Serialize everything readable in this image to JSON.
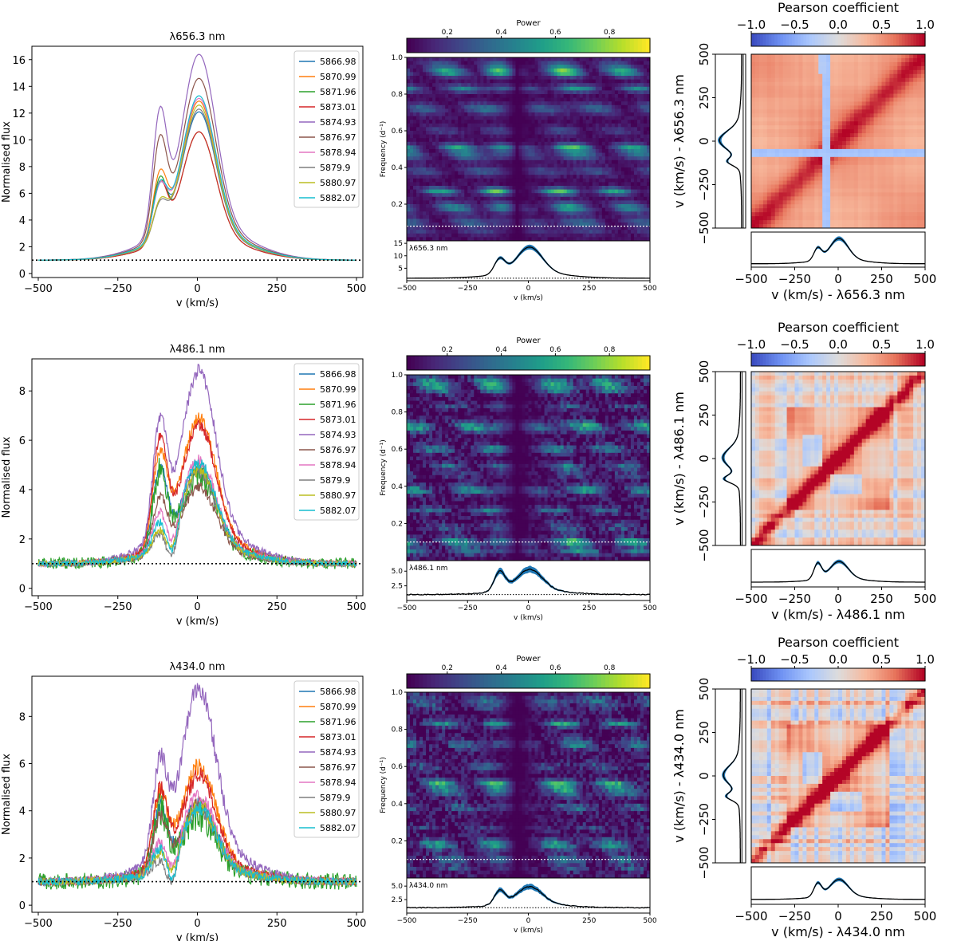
{
  "colors": {
    "series": [
      "#1f77b4",
      "#ff7f0e",
      "#2ca02c",
      "#d62728",
      "#9467bd",
      "#8c564b",
      "#e377c2",
      "#7f7f7f",
      "#bcbd22",
      "#17becf"
    ],
    "profile_fill": "#1f77b4",
    "profile_line": "#000000",
    "viridis": [
      "#440154",
      "#482878",
      "#3e4989",
      "#31688e",
      "#26828e",
      "#1f9e89",
      "#35b779",
      "#6ece58",
      "#b5de2b",
      "#fde725"
    ],
    "coolwarm": [
      "#3b4cc0",
      "#6f92f3",
      "#aac7fd",
      "#dddcdc",
      "#f7b89c",
      "#e7745b",
      "#b40426"
    ]
  },
  "chart_data": [
    {
      "type": "line",
      "panel": "flux-halpha",
      "title": "λ656.3 nm",
      "xlabel": "v (km/s)",
      "ylabel": "Normalised flux",
      "xlim": [
        -520,
        520
      ],
      "ylim": [
        -0.3,
        17
      ],
      "xticks": [
        -500,
        -250,
        0,
        250,
        500
      ],
      "yticks": [
        0,
        2,
        4,
        6,
        8,
        10,
        12,
        14,
        16
      ],
      "continuum": 1,
      "noise": 0,
      "legend_position": "upper right",
      "series": [
        {
          "name": "5866.98",
          "peak": 12.1,
          "shoulder": 3.9
        },
        {
          "name": "5870.99",
          "peak": 12.9,
          "shoulder": 4.7
        },
        {
          "name": "5871.96",
          "peak": 10.6,
          "shoulder": 4.6
        },
        {
          "name": "5873.01",
          "peak": 10.6,
          "shoulder": 4.3
        },
        {
          "name": "5874.93",
          "peak": 16.4,
          "shoulder": 8.8
        },
        {
          "name": "5876.97",
          "peak": 14.6,
          "shoulder": 7.0
        },
        {
          "name": "5878.94",
          "peak": 13.1,
          "shoulder": 3.7
        },
        {
          "name": "5879.9",
          "peak": 12.3,
          "shoulder": 2.5
        },
        {
          "name": "5880.97",
          "peak": 12.6,
          "shoulder": 2.6
        },
        {
          "name": "5882.07",
          "peak": 13.3,
          "shoulder": 3.8
        }
      ]
    },
    {
      "type": "line",
      "panel": "flux-hbeta",
      "title": "λ486.1 nm",
      "xlabel": "v (km/s)",
      "ylabel": "Normalised flux",
      "xlim": [
        -520,
        520
      ],
      "ylim": [
        -0.3,
        9.3
      ],
      "xticks": [
        -500,
        -250,
        0,
        250,
        500
      ],
      "yticks": [
        0,
        2,
        4,
        6,
        8
      ],
      "continuum": 1,
      "noise": 0.3,
      "legend_position": "upper right",
      "series": [
        {
          "name": "5866.98",
          "peak": 4.9,
          "shoulder": 3.3
        },
        {
          "name": "5870.99",
          "peak": 6.9,
          "shoulder": 3.6
        },
        {
          "name": "5871.96",
          "peak": 4.6,
          "shoulder": 3.2
        },
        {
          "name": "5873.01",
          "peak": 6.6,
          "shoulder": 4.2
        },
        {
          "name": "5874.93",
          "peak": 8.8,
          "shoulder": 4.6
        },
        {
          "name": "5876.97",
          "peak": 4.1,
          "shoulder": 2.2
        },
        {
          "name": "5878.94",
          "peak": 5.2,
          "shoulder": 1.5
        },
        {
          "name": "5879.9",
          "peak": 4.7,
          "shoulder": 0.7
        },
        {
          "name": "5880.97",
          "peak": 4.8,
          "shoulder": 0.8
        },
        {
          "name": "5882.07",
          "peak": 5.1,
          "shoulder": 1.1
        }
      ]
    },
    {
      "type": "line",
      "panel": "flux-hgamma",
      "title": "λ434.0 nm",
      "xlabel": "v (km/s)",
      "ylabel": "Normalised flux",
      "xlim": [
        -520,
        520
      ],
      "ylim": [
        -0.3,
        9.7
      ],
      "xticks": [
        -500,
        -250,
        0,
        250,
        500
      ],
      "yticks": [
        0,
        2,
        4,
        6,
        8
      ],
      "continuum": 1,
      "noise": 0.45,
      "legend_position": "upper right",
      "series": [
        {
          "name": "5866.98",
          "peak": 4.3,
          "shoulder": 2.6
        },
        {
          "name": "5870.99",
          "peak": 5.9,
          "shoulder": 3.0
        },
        {
          "name": "5871.96",
          "peak": 3.8,
          "shoulder": 2.6
        },
        {
          "name": "5873.01",
          "peak": 5.5,
          "shoulder": 3.2
        },
        {
          "name": "5874.93",
          "peak": 9.2,
          "shoulder": 3.9
        },
        {
          "name": "5876.97",
          "peak": 4.3,
          "shoulder": 2.2
        },
        {
          "name": "5878.94",
          "peak": 4.6,
          "shoulder": 1.1
        },
        {
          "name": "5879.9",
          "peak": 4.0,
          "shoulder": 0.5
        },
        {
          "name": "5880.97",
          "peak": 4.2,
          "shoulder": 0.8
        },
        {
          "name": "5882.07",
          "peak": 4.1,
          "shoulder": 1.0
        }
      ]
    },
    {
      "type": "heatmap",
      "panel": "periodogram-halpha",
      "colorbar_label": "Power",
      "colorbar_ticks": [
        0.2,
        0.4,
        0.6,
        0.8
      ],
      "colorbar_range": [
        0.05,
        0.95
      ],
      "ylabel": "Frequency (d⁻¹)",
      "ylim": [
        0,
        1
      ],
      "yticks": [
        0.2,
        0.4,
        0.6,
        0.8,
        1.0
      ],
      "xlim": [
        -500,
        500
      ],
      "xticks": [
        -500,
        -250,
        0,
        250,
        500
      ],
      "xlabel": "v (km/s)",
      "threshold_frequency": 0.08,
      "profile_label": "λ656.3 nm",
      "profile_yticks": [
        5,
        10,
        15
      ],
      "profile_ylim": [
        0,
        16
      ],
      "profile_peak": 13.5,
      "profile_shoulder": 6.0
    },
    {
      "type": "heatmap",
      "panel": "periodogram-hbeta",
      "colorbar_label": "Power",
      "colorbar_ticks": [
        0.2,
        0.4,
        0.6,
        0.8
      ],
      "colorbar_range": [
        0.05,
        0.95
      ],
      "ylabel": "Frequency (d⁻¹)",
      "ylim": [
        0,
        1
      ],
      "yticks": [
        0.2,
        0.4,
        0.6,
        0.8,
        1.0
      ],
      "xlim": [
        -500,
        500
      ],
      "xticks": [
        -500,
        -250,
        0,
        250,
        500
      ],
      "xlabel": "v (km/s)",
      "threshold_frequency": 0.1,
      "profile_label": "λ486.1 nm",
      "profile_yticks": [
        2.5,
        5.0
      ],
      "profile_ylim": [
        0,
        6.8
      ],
      "profile_peak": 5.3,
      "profile_shoulder": 3.3
    },
    {
      "type": "heatmap",
      "panel": "periodogram-hgamma",
      "colorbar_label": "Power",
      "colorbar_ticks": [
        0.2,
        0.4,
        0.6,
        0.8
      ],
      "colorbar_range": [
        0.05,
        0.95
      ],
      "ylabel": "Frequency (d⁻¹)",
      "ylim": [
        0,
        1
      ],
      "yticks": [
        0.2,
        0.4,
        0.6,
        0.8,
        1.0
      ],
      "xlim": [
        -500,
        500
      ],
      "xticks": [
        -500,
        -250,
        0,
        250,
        500
      ],
      "xlabel": "v (km/s)",
      "threshold_frequency": 0.1,
      "profile_label": "λ434.0 nm",
      "profile_yticks": [
        2.5,
        5.0
      ],
      "profile_ylim": [
        0,
        6.5
      ],
      "profile_peak": 4.9,
      "profile_shoulder": 2.6
    },
    {
      "type": "heatmap",
      "panel": "correlation-halpha",
      "colorbar_label": "Pearson coefficient",
      "colorbar_ticks": [
        -1.0,
        -0.5,
        0.0,
        0.5,
        1.0
      ],
      "colorbar_range": [
        -1,
        1
      ],
      "xlim": [
        -500,
        500
      ],
      "ylim": [
        -500,
        500
      ],
      "ticks": [
        -500,
        -250,
        0,
        250,
        500
      ],
      "xlabel": "v (km/s) - λ656.3 nm",
      "ylabel": "v (km/s) - λ656.3 nm",
      "noise_level": 0.05
    },
    {
      "type": "heatmap",
      "panel": "correlation-hbeta",
      "colorbar_label": "Pearson coefficient",
      "colorbar_ticks": [
        -1.0,
        -0.5,
        0.0,
        0.5,
        1.0
      ],
      "colorbar_range": [
        -1,
        1
      ],
      "xlim": [
        -500,
        500
      ],
      "ylim": [
        -500,
        500
      ],
      "ticks": [
        -500,
        -250,
        0,
        250,
        500
      ],
      "xlabel": "v (km/s) - λ486.1 nm",
      "ylabel": "v (km/s) - λ486.1 nm",
      "noise_level": 0.45
    },
    {
      "type": "heatmap",
      "panel": "correlation-hgamma",
      "colorbar_label": "Pearson coefficient",
      "colorbar_ticks": [
        -1.0,
        -0.5,
        0.0,
        0.5,
        1.0
      ],
      "colorbar_range": [
        -1,
        1
      ],
      "xlim": [
        -500,
        500
      ],
      "ylim": [
        -500,
        500
      ],
      "ticks": [
        -500,
        -250,
        0,
        250,
        500
      ],
      "xlabel": "v (km/s) - λ434.0 nm",
      "ylabel": "v (km/s) - λ434.0 nm",
      "noise_level": 0.6
    }
  ]
}
